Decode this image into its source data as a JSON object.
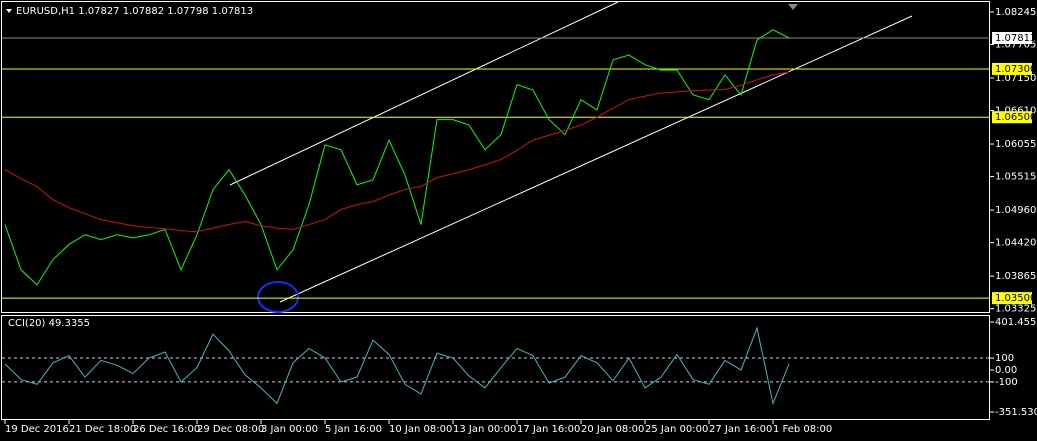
{
  "chart_data": [
    {
      "type": "line",
      "title": "EURUSD,H1  1.07827 1.07882 1.07798 1.07813",
      "categories": [
        "19 Dec 2016",
        null,
        null,
        null,
        "21 Dec 18:00",
        null,
        null,
        null,
        "26 Dec 16:00",
        null,
        null,
        null,
        "29 Dec 08:00",
        null,
        null,
        null,
        "3 Jan 00:00",
        null,
        null,
        null,
        "5 Jan 16:00",
        null,
        null,
        null,
        "10 Jan 08:00",
        null,
        null,
        null,
        "13 Jan 00:00",
        null,
        null,
        null,
        "17 Jan 16:00",
        null,
        null,
        null,
        "20 Jan 08:00",
        null,
        null,
        null,
        "25 Jan 00:00",
        null,
        null,
        null,
        "27 Jan 16:00",
        null,
        null,
        null,
        "1 Feb 08:00",
        null
      ],
      "series": [
        {
          "color": "#00ff00",
          "values": [
            1.0472,
            1.0397,
            1.0372,
            1.0414,
            1.0439,
            1.0455,
            1.0447,
            1.0455,
            1.045,
            1.0455,
            1.0464,
            1.0397,
            1.0455,
            1.053,
            1.0563,
            1.0521,
            1.0472,
            1.0397,
            1.043,
            1.0505,
            1.0604,
            1.0596,
            1.0538,
            1.0546,
            1.0612,
            1.0554,
            1.0472,
            1.0646,
            1.0646,
            1.0637,
            1.0596,
            1.0621,
            1.0704,
            1.0695,
            1.0646,
            1.0621,
            1.0679,
            1.0662,
            1.0745,
            1.0753,
            1.0737,
            1.0728,
            1.0728,
            1.0687,
            1.0679,
            1.072,
            1.0687,
            1.0778,
            1.0795,
            1.07813
          ]
        },
        {
          "color": "#d01010",
          "values": [
            1.0563,
            1.0548,
            1.0535,
            1.0513,
            1.05,
            1.049,
            1.048,
            1.0475,
            1.047,
            1.0467,
            1.0465,
            1.0462,
            1.046,
            1.0466,
            1.0472,
            1.0477,
            1.047,
            1.0466,
            1.0464,
            1.0472,
            1.048,
            1.0497,
            1.0505,
            1.051,
            1.0521,
            1.053,
            1.0535,
            1.055,
            1.0556,
            1.0563,
            1.0571,
            1.058,
            1.0595,
            1.0612,
            1.062,
            1.0628,
            1.0637,
            1.065,
            1.0665,
            1.0679,
            1.0685,
            1.069,
            1.0692,
            1.0694,
            1.0695,
            1.0696,
            1.0703,
            1.0712,
            1.072,
            1.0725
          ]
        }
      ],
      "ylim": [
        1.0327,
        1.0841
      ],
      "yticks": [
        1.08245,
        1.07705,
        {
          "value": 1.0715,
          "label": "1.07150"
        },
        {
          "value": 1.0661,
          "label": "1.06610"
        },
        1.06055,
        1.05515,
        {
          "value": 1.0496,
          "label": "1.04960"
        },
        {
          "value": 1.0442,
          "label": "1.04420"
        },
        1.03865,
        1.03325
      ],
      "levels": [
        {
          "value": 1.073,
          "label": "1.07300"
        },
        {
          "value": 1.065,
          "label": "1.06500"
        },
        {
          "value": 1.035,
          "label": "1.03500"
        }
      ],
      "level_color": "#ffff00",
      "last_price": {
        "value": 1.07813,
        "label": "1.07813"
      }
    },
    {
      "type": "line",
      "title": "CCI(20) 49.3355",
      "series": [
        {
          "color": "#40b8c0",
          "values": [
            50,
            -80,
            -120,
            60,
            120,
            -60,
            80,
            40,
            -30,
            100,
            150,
            -100,
            20,
            300,
            160,
            -40,
            -150,
            -280,
            60,
            180,
            100,
            -100,
            -60,
            250,
            130,
            -120,
            -200,
            140,
            100,
            -50,
            -150,
            20,
            180,
            120,
            -110,
            -60,
            120,
            60,
            -90,
            100,
            -150,
            -60,
            130,
            -80,
            -120,
            80,
            0,
            350,
            -280,
            49.3355
          ]
        }
      ],
      "ylim": [
        -418.5,
        451.7
      ],
      "yticks": [
        401.4559,
        100,
        {
          "value": 0,
          "label": "0.00"
        },
        -100,
        -351.5301
      ],
      "levels": [
        100,
        -100
      ]
    }
  ]
}
